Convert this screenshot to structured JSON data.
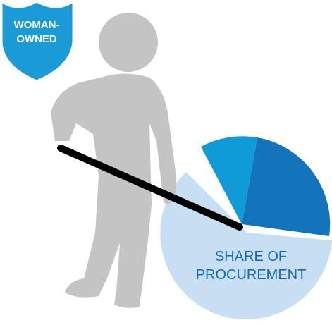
{
  "badge": {
    "lines": [
      "WOMAN-",
      "OWNED"
    ]
  },
  "label": {
    "lines": [
      "SHARE OF",
      "PROCUREMENT"
    ]
  }
}
